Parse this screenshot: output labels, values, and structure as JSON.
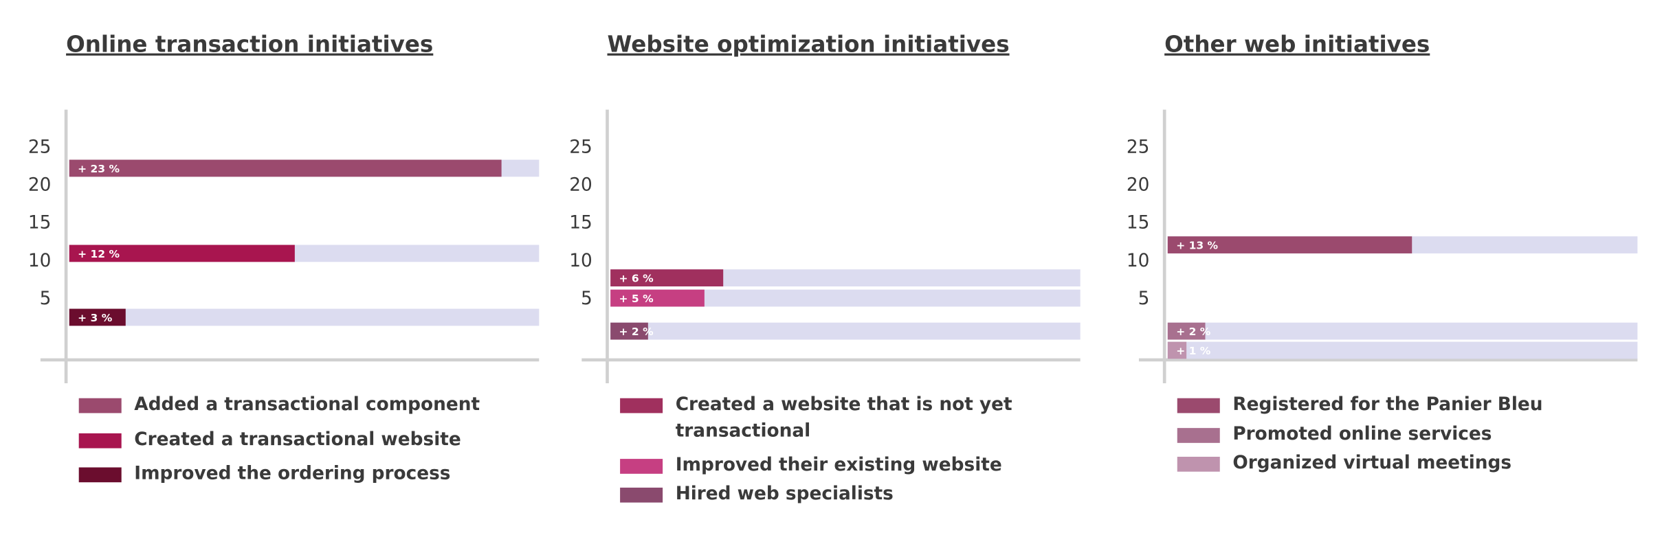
{
  "chart_data": [
    {
      "type": "bar",
      "title": "Online transaction initiatives",
      "categories": [
        "Added a transactional component",
        "Created a transactional website",
        "Improved the ordering process"
      ],
      "values": [
        23,
        12,
        3
      ],
      "value_labels": [
        "+ 23 %",
        "+ 12 %",
        "+ 3 %"
      ],
      "colors": [
        "#9b4a6e",
        "#a8154f",
        "#6b0d2e"
      ],
      "xlim": [
        0,
        25
      ],
      "ylim": [
        -3,
        30
      ],
      "yticks": [
        5,
        10,
        15,
        20,
        25
      ]
    },
    {
      "type": "bar",
      "title": "Website optimization initiatives",
      "categories": [
        "Created a website that is not yet transactional",
        "Improved their existing website",
        "Hired web specialists"
      ],
      "values": [
        6,
        5,
        2
      ],
      "value_labels": [
        "+ 6 %",
        "+ 5 %",
        "+ 2 %"
      ],
      "colors": [
        "#a0305e",
        "#c63f82",
        "#8a4a6e"
      ],
      "xlim": [
        0,
        25
      ],
      "ylim": [
        -3,
        30
      ],
      "yticks": [
        5,
        10,
        15,
        20,
        25
      ]
    },
    {
      "type": "bar",
      "title": "Other web initiatives",
      "categories": [
        "Registered for the Panier Bleu",
        "Promoted online services",
        "Organized virtual meetings"
      ],
      "values": [
        13,
        2,
        1
      ],
      "value_labels": [
        "+ 13 %",
        "+ 2 %",
        "+ 1 %"
      ],
      "colors": [
        "#9b4a6e",
        "#a8708f",
        "#bf93ae"
      ],
      "xlim": [
        0,
        25
      ],
      "ylim": [
        -3,
        30
      ],
      "yticks": [
        5,
        10,
        15,
        20,
        25
      ]
    }
  ]
}
